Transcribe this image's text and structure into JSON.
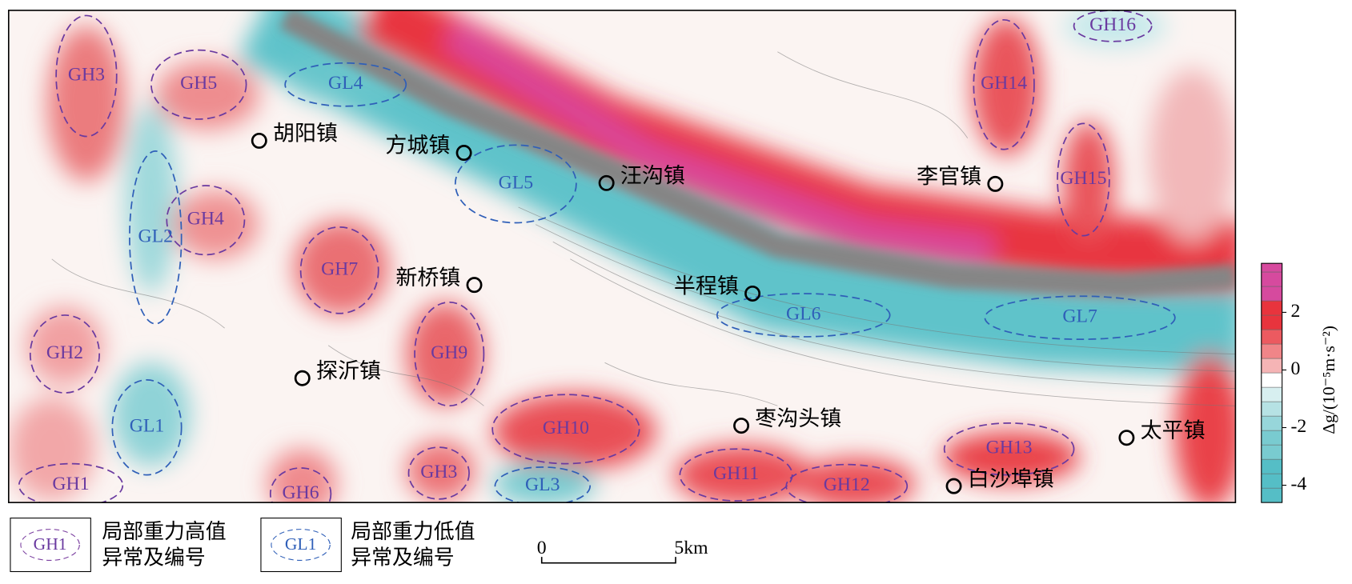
{
  "anomalies": [
    {
      "label": "GH3"
    },
    {
      "label": "GH5"
    },
    {
      "label": "GL4"
    },
    {
      "label": "GH16"
    },
    {
      "label": "GH14"
    },
    {
      "label": "GH15"
    },
    {
      "label": "GL5"
    },
    {
      "label": "GH4"
    },
    {
      "label": "GL2"
    },
    {
      "label": "GH7"
    },
    {
      "label": "GL6"
    },
    {
      "label": "GL7"
    },
    {
      "label": "GH2"
    },
    {
      "label": "GH9"
    },
    {
      "label": "GL1"
    },
    {
      "label": "GH10"
    },
    {
      "label": "GH13"
    },
    {
      "label": "GH1"
    },
    {
      "label": "GH3"
    },
    {
      "label": "GL3"
    },
    {
      "label": "GH11"
    },
    {
      "label": "GH12"
    },
    {
      "label": "GH6"
    }
  ],
  "towns": [
    {
      "name": "胡阳镇"
    },
    {
      "name": "方城镇"
    },
    {
      "name": "汪沟镇"
    },
    {
      "name": "李官镇"
    },
    {
      "name": "新桥镇"
    },
    {
      "name": "半程镇"
    },
    {
      "name": "探沂镇"
    },
    {
      "name": "枣沟头镇"
    },
    {
      "name": "太平镇"
    },
    {
      "name": "白沙埠镇"
    }
  ],
  "colorbar": {
    "label": "Δg/(10⁻⁵m·s⁻²)",
    "lim": [
      -4.6,
      3.7
    ],
    "ticks": [
      2,
      0,
      -2,
      -4
    ]
  },
  "legend": {
    "high": {
      "symbol": "GH1",
      "lines": [
        "局部重力高值",
        "异常及编号"
      ]
    },
    "low": {
      "symbol": "GL1",
      "lines": [
        "局部重力低值",
        "异常及编号"
      ]
    }
  },
  "scale_bar": {
    "start": "0",
    "end": "5km"
  }
}
